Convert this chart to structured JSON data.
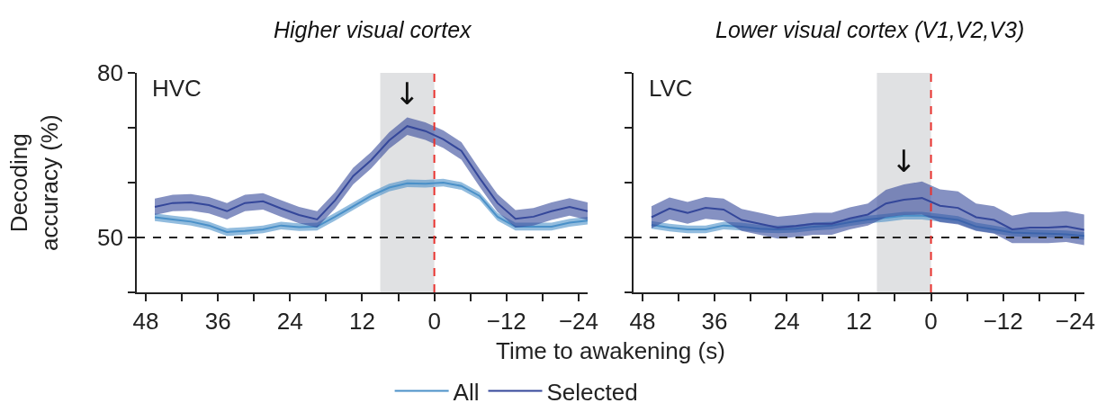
{
  "chart_data": [
    {
      "type": "line",
      "title": "Higher visual cortex",
      "xlabel": "Time to awakening (s)",
      "ylabel": "Decoding\naccuracy (%)",
      "annotations": [
        "HVC",
        {
          "text": "↓",
          "x": 4.5,
          "y": 71.9
        }
      ],
      "x": [
        46.5,
        43.5,
        40.5,
        37.5,
        34.5,
        31.5,
        28.5,
        25.5,
        22.5,
        19.5,
        16.5,
        13.5,
        10.5,
        7.5,
        4.5,
        1.5,
        -1.5,
        -4.5,
        -7.5,
        -10.5,
        -13.5,
        -16.5,
        -19.5,
        -22.5,
        -25.5
      ],
      "series": [
        {
          "name": "All",
          "color": "#4a90c8",
          "values": [
            53.7,
            53.3,
            52.9,
            52.2,
            51.0,
            51.2,
            51.5,
            52.2,
            51.9,
            52.0,
            53.8,
            55.7,
            57.6,
            59.1,
            59.9,
            59.8,
            60.0,
            59.4,
            57.6,
            53.8,
            52.0,
            52.0,
            52.0,
            52.7,
            53.1
          ],
          "lower": [
            53.0,
            52.6,
            52.2,
            51.5,
            50.3,
            50.5,
            50.8,
            51.5,
            51.2,
            51.3,
            53.1,
            55.0,
            56.9,
            58.4,
            59.2,
            59.1,
            59.3,
            58.7,
            56.9,
            53.1,
            51.3,
            51.3,
            51.3,
            52.0,
            52.4
          ],
          "upper": [
            54.4,
            54.0,
            53.6,
            52.9,
            51.7,
            51.9,
            52.2,
            52.9,
            52.6,
            52.7,
            54.5,
            56.4,
            58.3,
            59.8,
            60.6,
            60.5,
            60.7,
            60.1,
            58.3,
            54.5,
            52.7,
            52.7,
            52.7,
            53.4,
            53.8
          ]
        },
        {
          "name": "Selected",
          "color": "#34479a",
          "values": [
            55.6,
            56.3,
            56.4,
            55.9,
            54.8,
            56.3,
            56.6,
            55.3,
            54.1,
            53.3,
            56.8,
            61.2,
            64.1,
            67.7,
            70.3,
            69.4,
            67.9,
            65.8,
            60.9,
            56.3,
            53.4,
            53.8,
            54.8,
            55.6,
            54.8
          ],
          "lower": [
            54.1,
            54.8,
            54.9,
            54.4,
            53.3,
            54.8,
            55.1,
            53.8,
            52.6,
            51.8,
            55.3,
            59.7,
            62.6,
            66.2,
            68.7,
            67.8,
            66.3,
            64.2,
            59.3,
            54.7,
            51.8,
            52.2,
            53.2,
            54.0,
            53.2
          ],
          "upper": [
            57.1,
            57.8,
            57.9,
            57.4,
            56.3,
            57.8,
            58.1,
            56.8,
            55.6,
            54.8,
            58.3,
            62.7,
            65.6,
            69.2,
            71.9,
            71.0,
            69.5,
            67.4,
            62.5,
            57.9,
            55.0,
            55.4,
            56.4,
            57.2,
            56.4
          ]
        }
      ],
      "xlim": [
        49.5,
        -25.5
      ],
      "xticks": [
        48,
        {
          "value": 42,
          "label": null
        },
        36,
        {
          "value": 30,
          "label": null
        },
        24,
        {
          "value": 18,
          "label": null
        },
        12,
        {
          "value": 6,
          "label": null
        },
        0,
        {
          "value": -6,
          "label": null
        },
        {
          "value": -12,
          "label": "−12"
        },
        {
          "value": -18,
          "label": null
        },
        {
          "value": -24,
          "label": "−24"
        }
      ],
      "ylim": [
        40,
        80
      ],
      "yticks": [
        {
          "value": 40,
          "label": null
        },
        50,
        {
          "value": 60,
          "label": null
        },
        {
          "value": 70,
          "label": null
        },
        80
      ],
      "ref_lines": [
        {
          "axis": "y",
          "value": 50,
          "color": "#222222",
          "line_style": "dashed"
        },
        {
          "axis": "x",
          "value": 0,
          "color": "#e8322e",
          "line_style": "dashed"
        }
      ],
      "bands": [
        {
          "axis": "x",
          "from": 9,
          "to": 0,
          "color": "#e0e1e3"
        }
      ],
      "grid": false,
      "legend": "bottom",
      "marker": "none",
      "line_style": "solid"
    },
    {
      "type": "line",
      "title": "Lower visual cortex (V1,V2,V3)",
      "annotations": [
        "LVC",
        {
          "text": "↓",
          "x": 4.5,
          "y": 59.7
        }
      ],
      "x": [
        46.5,
        43.5,
        40.5,
        37.5,
        34.5,
        31.5,
        28.5,
        25.5,
        22.5,
        19.5,
        16.5,
        13.5,
        10.5,
        7.5,
        4.5,
        1.5,
        -1.5,
        -4.5,
        -7.5,
        -10.5,
        -13.5,
        -16.5,
        -19.5,
        -22.5,
        -25.5
      ],
      "series": [
        {
          "color": "#4a90c8",
          "values": [
            52.3,
            51.8,
            51.5,
            51.5,
            52.2,
            52.0,
            51.6,
            51.5,
            51.6,
            52.0,
            52.2,
            52.8,
            53.3,
            53.6,
            54.0,
            54.0,
            53.6,
            53.2,
            52.0,
            51.5,
            50.9,
            50.8,
            50.7,
            50.6,
            50.3
          ],
          "lower": [
            51.6,
            51.1,
            50.8,
            50.8,
            51.5,
            51.3,
            50.9,
            50.8,
            50.9,
            51.3,
            51.5,
            52.1,
            52.6,
            52.9,
            53.3,
            53.3,
            52.9,
            52.5,
            51.3,
            50.8,
            50.2,
            50.1,
            50.0,
            49.9,
            49.6
          ],
          "upper": [
            53.0,
            52.5,
            52.2,
            52.2,
            52.9,
            52.7,
            52.3,
            52.2,
            52.3,
            52.7,
            52.9,
            53.5,
            54.0,
            54.3,
            54.7,
            54.7,
            54.3,
            53.9,
            52.7,
            52.2,
            51.6,
            51.5,
            51.4,
            51.3,
            51.0
          ]
        },
        {
          "color": "#34479a",
          "values": [
            53.7,
            55.3,
            54.5,
            55.4,
            55.1,
            53.2,
            52.5,
            51.8,
            52.1,
            52.5,
            52.5,
            53.5,
            54.2,
            56.2,
            56.9,
            57.2,
            55.8,
            55.4,
            53.7,
            53.2,
            51.5,
            51.8,
            51.8,
            52.0,
            51.4
          ],
          "lower": [
            51.7,
            53.3,
            52.5,
            53.4,
            53.1,
            51.2,
            50.5,
            49.8,
            50.1,
            50.5,
            50.5,
            51.5,
            52.2,
            53.7,
            54.1,
            54.2,
            52.8,
            52.4,
            51.2,
            50.7,
            49.0,
            49.0,
            49.0,
            49.2,
            48.6
          ],
          "upper": [
            55.7,
            57.3,
            56.5,
            57.4,
            57.1,
            55.2,
            54.5,
            53.8,
            54.1,
            54.5,
            54.5,
            55.5,
            56.2,
            58.7,
            59.7,
            60.2,
            58.8,
            58.4,
            56.2,
            55.7,
            54.0,
            54.6,
            54.6,
            54.8,
            54.2
          ]
        }
      ],
      "xlim": [
        49.5,
        -25.5
      ],
      "xticks": [
        48,
        {
          "value": 42,
          "label": null
        },
        36,
        {
          "value": 30,
          "label": null
        },
        24,
        {
          "value": 18,
          "label": null
        },
        12,
        {
          "value": 6,
          "label": null
        },
        0,
        {
          "value": -6,
          "label": null
        },
        {
          "value": -12,
          "label": "−12"
        },
        {
          "value": -18,
          "label": null
        },
        {
          "value": -24,
          "label": "−24"
        }
      ],
      "ylim": [
        40,
        80
      ],
      "yticks": [
        {
          "value": 40,
          "label": null
        },
        50,
        {
          "value": 60,
          "label": null
        },
        {
          "value": 70,
          "label": null
        },
        80
      ],
      "ref_lines": [
        {
          "axis": "y",
          "value": 50,
          "color": "#222222",
          "line_style": "dashed"
        },
        {
          "axis": "x",
          "value": 0,
          "color": "#e8322e",
          "line_style": "dashed"
        }
      ],
      "bands": [
        {
          "axis": "x",
          "from": 9,
          "to": 0,
          "color": "#e0e1e3"
        }
      ],
      "grid": false,
      "legend": false,
      "marker": "none",
      "line_style": "solid",
      "tick_labels": "x"
    }
  ]
}
